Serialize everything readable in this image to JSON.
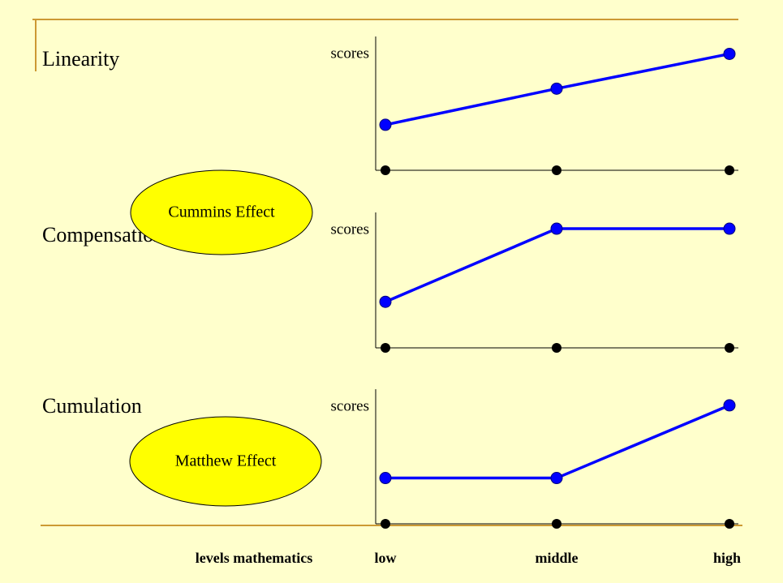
{
  "chart_data": [
    {
      "type": "line",
      "title": "Linearity",
      "ylabel": "scores",
      "ylim": [
        0,
        10
      ],
      "values": [
        3.4,
        6.1,
        8.7
      ],
      "color": "#0000ff"
    },
    {
      "type": "line",
      "title": "Compensation",
      "ylabel": "scores",
      "ylim": [
        0,
        10
      ],
      "values": [
        3.4,
        8.8,
        8.8
      ],
      "color": "#0000ff",
      "annotation": "Cummins Effect"
    },
    {
      "type": "line",
      "title": "Cumulation",
      "ylabel": "scores",
      "ylim": [
        0,
        10
      ],
      "values": [
        3.4,
        3.4,
        8.8
      ],
      "color": "#0000ff",
      "annotation": "Matthew Effect",
      "xlabel": "levels mathematics",
      "categories": [
        "low",
        "middle",
        "high"
      ]
    }
  ]
}
